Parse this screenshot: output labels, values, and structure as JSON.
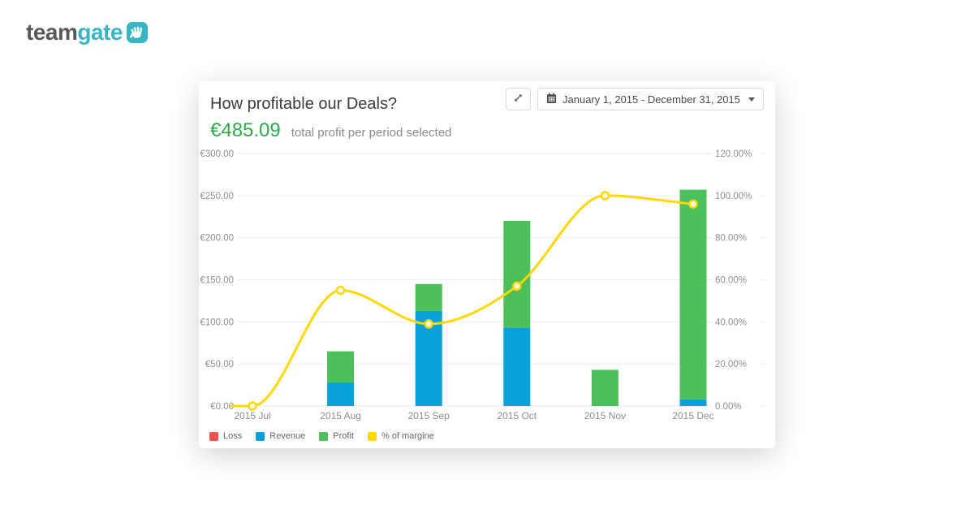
{
  "logo": {
    "team": "team",
    "gate": "gate",
    "brand_color": "#39b5c4",
    "text_color": "#57585a"
  },
  "card": {
    "title": "How profitable our Deals?",
    "total": "€485.09",
    "subtitle": "total profit per period selected",
    "toolbar": {
      "date_range": "January 1, 2015 - December 31, 2015"
    }
  },
  "chart_data": {
    "type": "combo: stacked bar + spline",
    "title": "How profitable our Deals?",
    "categories": [
      "2015 Jul",
      "2015 Aug",
      "2015 Sep",
      "2015 Oct",
      "2015 Nov",
      "2015 Dec"
    ],
    "series": [
      {
        "name": "Loss",
        "type": "bar",
        "stack": true,
        "color": "#e8534e",
        "values": [
          0,
          0,
          0,
          0,
          0,
          0
        ]
      },
      {
        "name": "Revenue",
        "type": "bar",
        "stack": true,
        "color": "#0aa0d9",
        "values": [
          0,
          28,
          113,
          93,
          0,
          8
        ]
      },
      {
        "name": "Profit",
        "type": "bar",
        "stack": true,
        "color": "#4cc05a",
        "values": [
          0,
          37,
          32,
          127,
          43,
          249
        ]
      },
      {
        "name": "% of margine",
        "type": "spline",
        "axis": "right",
        "color": "#ffd800",
        "values": [
          0,
          55,
          39,
          57,
          100,
          96
        ]
      }
    ],
    "legend": [
      {
        "name": "Loss",
        "color": "#e8534e"
      },
      {
        "name": "Revenue",
        "color": "#0aa0d9"
      },
      {
        "name": "Profit",
        "color": "#4cc05a"
      },
      {
        "name": "% of margine",
        "color": "#ffd800"
      }
    ],
    "left_axis": {
      "min": 0,
      "max": 300,
      "ticks": [
        "€300.00",
        "€250.00",
        "€200.00",
        "€150.00",
        "€100.00",
        "€50.00",
        "€0.00"
      ]
    },
    "right_axis": {
      "min": 0,
      "max": 120,
      "ticks": [
        "120.00%",
        "100.00%",
        "80.00%",
        "60.00%",
        "40.00%",
        "20.00%",
        "0.00%"
      ]
    },
    "grid": true,
    "legend_position": "bottom-left"
  }
}
